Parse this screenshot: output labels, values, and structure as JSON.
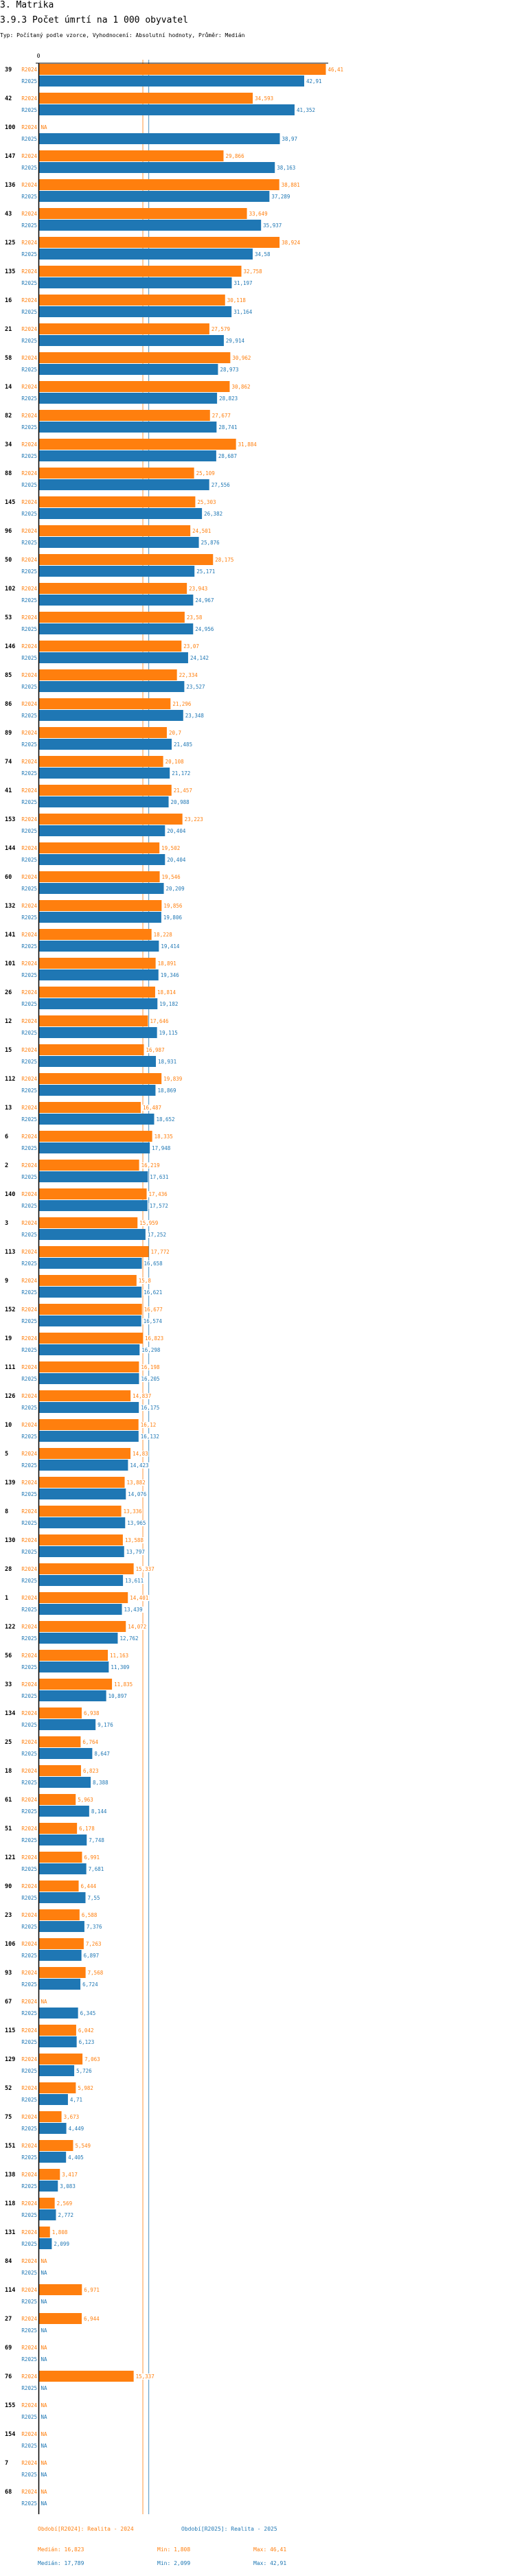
{
  "header": {
    "section": "3. Matrika",
    "title": "3.9.3 Počet úmrtí na 1 000 obyvatel",
    "subtitle": "Typ: Počítaný podle vzorce, Vyhodnocení: Absolutní hodnoty, Průměr: Medián"
  },
  "chart_data": {
    "type": "bar",
    "orientation": "horizontal",
    "title": "3.9.3 Počet úmrtí na 1 000 obyvatel",
    "xlabel": "",
    "ylabel": "",
    "axis_zero_label": "0",
    "xlim": [
      0,
      46.41
    ],
    "colors": {
      "R2024": "#ff7f0e",
      "R2025": "#1f77b4"
    },
    "na_label": "NA",
    "categories": [
      "39",
      "42",
      "100",
      "147",
      "136",
      "43",
      "125",
      "135",
      "16",
      "21",
      "58",
      "14",
      "82",
      "34",
      "88",
      "145",
      "96",
      "50",
      "102",
      "53",
      "146",
      "85",
      "86",
      "89",
      "74",
      "41",
      "153",
      "144",
      "60",
      "132",
      "141",
      "101",
      "26",
      "12",
      "15",
      "112",
      "13",
      "6",
      "2",
      "140",
      "3",
      "113",
      "9",
      "152",
      "19",
      "111",
      "126",
      "10",
      "5",
      "139",
      "8",
      "130",
      "28",
      "1",
      "122",
      "56",
      "33",
      "134",
      "25",
      "18",
      "61",
      "51",
      "121",
      "90",
      "23",
      "106",
      "93",
      "67",
      "115",
      "129",
      "52",
      "75",
      "151",
      "138",
      "118",
      "131",
      "84",
      "114",
      "27",
      "69",
      "76",
      "155",
      "154",
      "7",
      "68"
    ],
    "series": [
      {
        "name": "R2024",
        "values": [
          46.41,
          34.593,
          null,
          29.866,
          38.881,
          33.649,
          38.924,
          32.758,
          30.118,
          27.579,
          30.962,
          30.862,
          27.677,
          31.884,
          25.109,
          25.303,
          24.501,
          28.175,
          23.943,
          23.58,
          23.07,
          22.334,
          21.296,
          20.7,
          20.108,
          21.457,
          23.223,
          19.502,
          19.546,
          19.856,
          18.228,
          18.891,
          18.814,
          17.646,
          16.987,
          19.839,
          16.487,
          18.335,
          16.219,
          17.436,
          15.959,
          17.772,
          15.8,
          16.677,
          16.823,
          16.198,
          14.837,
          16.12,
          14.83,
          13.882,
          13.336,
          13.588,
          15.337,
          14.401,
          14.072,
          11.163,
          11.835,
          6.938,
          6.764,
          6.823,
          5.963,
          6.178,
          6.991,
          6.444,
          6.588,
          7.263,
          7.568,
          null,
          6.042,
          7.063,
          5.982,
          3.673,
          5.549,
          3.417,
          2.569,
          1.808,
          null,
          6.971,
          6.944,
          null,
          15.337,
          null,
          null,
          null,
          null
        ]
      },
      {
        "name": "R2025",
        "values": [
          42.91,
          41.352,
          38.97,
          38.163,
          37.289,
          35.937,
          34.58,
          31.197,
          31.164,
          29.914,
          28.973,
          28.823,
          28.741,
          28.687,
          27.556,
          26.382,
          25.876,
          25.171,
          24.967,
          24.956,
          24.142,
          23.527,
          23.348,
          21.485,
          21.172,
          20.988,
          20.404,
          20.404,
          20.209,
          19.806,
          19.414,
          19.346,
          19.182,
          19.115,
          18.931,
          18.869,
          18.652,
          17.948,
          17.631,
          17.572,
          17.252,
          16.658,
          16.621,
          16.574,
          16.298,
          16.205,
          16.175,
          16.132,
          14.423,
          14.076,
          13.965,
          13.797,
          13.611,
          13.439,
          12.762,
          11.309,
          10.897,
          9.176,
          8.647,
          8.388,
          8.144,
          7.748,
          7.681,
          7.55,
          7.376,
          6.897,
          6.724,
          6.345,
          6.123,
          5.726,
          4.71,
          4.449,
          4.405,
          3.083,
          2.772,
          2.099,
          null,
          null,
          null,
          null,
          null,
          null,
          null,
          null,
          null
        ]
      }
    ],
    "reference_lines": [
      {
        "series": "R2024",
        "label": "Medián",
        "value": 16.823
      },
      {
        "series": "R2025",
        "label": "Medián",
        "value": 17.789
      }
    ]
  },
  "legend": {
    "r2024": {
      "label": "Období[R2024]: Realita - 2024",
      "median": "Medián: 16,823",
      "min": "Min: 1,808",
      "max": "Max: 46,41"
    },
    "r2025": {
      "label": "Období[R2025]: Realita - 2025",
      "median": "Medián: 17,789",
      "min": "Min: 2,099",
      "max": "Max: 42,91"
    }
  }
}
